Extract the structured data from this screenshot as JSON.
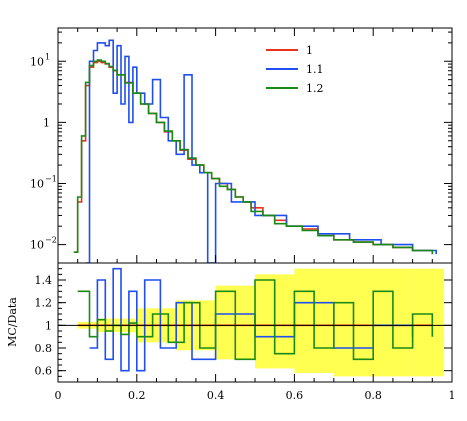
{
  "chart_data": [
    {
      "type": "line",
      "panel": "main",
      "title": "",
      "xlabel": "",
      "ylabel": "",
      "xlim": [
        0,
        1
      ],
      "ylim": [
        0.005,
        35
      ],
      "yscale": "log",
      "legend_placement": "top-right",
      "yticks": [
        {
          "value": 0.01,
          "base": "10",
          "exp": "−2"
        },
        {
          "value": 0.1,
          "base": "10",
          "exp": "−1"
        },
        {
          "value": 1,
          "base": "1",
          "exp": ""
        },
        {
          "value": 10,
          "base": "10",
          "exp": "1"
        }
      ],
      "series": [
        {
          "name": "1",
          "color": "#e8321e",
          "x": [
            0.04,
            0.05,
            0.06,
            0.07,
            0.08,
            0.09,
            0.1,
            0.11,
            0.12,
            0.13,
            0.14,
            0.15,
            0.17,
            0.19,
            0.21,
            0.23,
            0.25,
            0.27,
            0.29,
            0.31,
            0.33,
            0.35,
            0.37,
            0.39,
            0.41,
            0.43,
            0.45,
            0.47,
            0.49,
            0.52,
            0.55,
            0.58,
            0.62,
            0.66,
            0.7,
            0.75,
            0.8,
            0.85,
            0.9,
            0.95
          ],
          "y": [
            0.0075,
            0.05,
            0.5,
            4,
            8,
            9.5,
            10,
            9.5,
            9,
            8,
            7,
            6,
            4.5,
            3,
            2,
            1.4,
            1.0,
            0.7,
            0.5,
            0.35,
            0.25,
            0.2,
            0.15,
            0.12,
            0.1,
            0.08,
            0.06,
            0.05,
            0.04,
            0.03,
            0.025,
            0.02,
            0.018,
            0.015,
            0.012,
            0.011,
            0.01,
            0.009,
            0.008,
            0.007
          ]
        },
        {
          "name": "1.1",
          "color": "#1f4ff0",
          "x": [
            0.07,
            0.08,
            0.09,
            0.1,
            0.11,
            0.12,
            0.13,
            0.14,
            0.15,
            0.16,
            0.17,
            0.18,
            0.19,
            0.2,
            0.22,
            0.24,
            0.26,
            0.28,
            0.3,
            0.32,
            0.34,
            0.36,
            0.38,
            0.4,
            0.44,
            0.5,
            0.58,
            0.66,
            0.74,
            0.82,
            0.9,
            0.96
          ],
          "y": [
            0.005,
            10,
            15,
            20,
            20,
            18,
            22,
            3,
            18,
            2,
            12,
            1,
            8,
            3,
            2,
            5,
            1.2,
            0.5,
            0.3,
            6,
            0.2,
            0.15,
            0.005,
            0.1,
            0.05,
            0.03,
            0.02,
            0.015,
            0.012,
            0.01,
            0.008,
            0.007
          ]
        },
        {
          "name": "1.2",
          "color": "#1a8a16",
          "x": [
            0.04,
            0.05,
            0.06,
            0.07,
            0.08,
            0.09,
            0.1,
            0.11,
            0.12,
            0.13,
            0.14,
            0.15,
            0.17,
            0.19,
            0.21,
            0.23,
            0.25,
            0.27,
            0.29,
            0.31,
            0.33,
            0.35,
            0.37,
            0.39,
            0.41,
            0.43,
            0.45,
            0.47,
            0.49,
            0.52,
            0.55,
            0.58,
            0.62,
            0.66,
            0.7,
            0.75,
            0.8,
            0.85,
            0.9,
            0.95
          ],
          "y": [
            0.0075,
            0.06,
            0.6,
            4.5,
            8.5,
            10,
            10.5,
            10,
            9.2,
            8.2,
            7.1,
            6,
            4.4,
            3,
            2,
            1.4,
            1.0,
            0.72,
            0.5,
            0.36,
            0.26,
            0.2,
            0.15,
            0.12,
            0.09,
            0.08,
            0.06,
            0.05,
            0.035,
            0.03,
            0.022,
            0.02,
            0.017,
            0.014,
            0.012,
            0.011,
            0.01,
            0.009,
            0.008,
            0.007
          ]
        }
      ]
    },
    {
      "type": "line",
      "panel": "ratio",
      "title": "",
      "xlabel": "",
      "ylabel": "MC/Data",
      "xlim": [
        0,
        1
      ],
      "ylim": [
        0.5,
        1.55
      ],
      "yscale": "linear",
      "xticks": [
        "0",
        "0.2",
        "0.4",
        "0.6",
        "0.8",
        "1"
      ],
      "yticks": [
        "0.6",
        "0.8",
        "1",
        "1.2",
        "1.4"
      ],
      "uncertainty_band_color": "#ffff33",
      "reference_line": 1,
      "series": [
        {
          "name": "1",
          "color": "#e8321e",
          "x": [
            0.05,
            0.15,
            0.25,
            0.35,
            0.45,
            0.55,
            0.65,
            0.75,
            0.85,
            0.95
          ],
          "y": [
            1,
            1,
            1,
            1,
            1,
            1,
            1,
            1,
            1,
            1
          ]
        },
        {
          "name": "1.1",
          "color": "#1f4ff0",
          "x": [
            0.08,
            0.1,
            0.12,
            0.14,
            0.16,
            0.18,
            0.2,
            0.22,
            0.26,
            0.3,
            0.34,
            0.4,
            0.5,
            0.6,
            0.7,
            0.8,
            0.9
          ],
          "y": [
            0.8,
            1.4,
            0.7,
            1.5,
            0.6,
            1.3,
            0.6,
            1.4,
            0.8,
            1.2,
            0.7,
            1.1,
            0.9,
            1.2,
            0.8,
            1.0,
            0.9
          ]
        },
        {
          "name": "1.2",
          "color": "#1a8a16",
          "x": [
            0.05,
            0.08,
            0.1,
            0.12,
            0.14,
            0.16,
            0.18,
            0.2,
            0.24,
            0.28,
            0.32,
            0.36,
            0.4,
            0.45,
            0.5,
            0.55,
            0.6,
            0.65,
            0.7,
            0.75,
            0.8,
            0.85,
            0.9,
            0.95
          ],
          "y": [
            1.3,
            0.9,
            1.05,
            0.95,
            1.0,
            0.92,
            1.02,
            0.9,
            1.1,
            0.85,
            1.2,
            0.8,
            1.3,
            0.7,
            1.4,
            0.75,
            1.3,
            0.8,
            1.2,
            0.7,
            1.3,
            0.8,
            1.1,
            0.9
          ]
        }
      ]
    }
  ]
}
